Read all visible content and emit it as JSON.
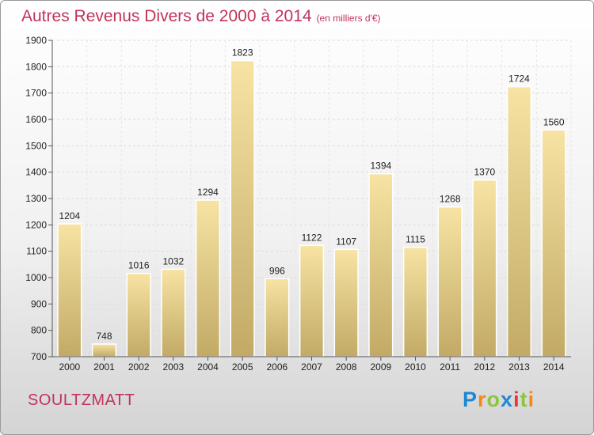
{
  "title": "Autres Revenus Divers de 2000 à 2014",
  "subtitle": "(en milliers d'€)",
  "commune": "SOULTZMATT",
  "logo": {
    "letters": [
      "P",
      "r",
      "o",
      "x",
      "i",
      "t",
      "i"
    ],
    "colors": [
      "#1e88d6",
      "#f08a1c",
      "#8cc63f",
      "#1e88d6",
      "#e53935",
      "#8cc63f",
      "#f08a1c"
    ]
  },
  "colors": {
    "title": "#c2335b",
    "bar_light": "#f7e3a3",
    "bar_dark": "#c2aa66"
  },
  "chart_data": {
    "type": "bar",
    "categories": [
      "2000",
      "2001",
      "2002",
      "2003",
      "2004",
      "2005",
      "2006",
      "2007",
      "2008",
      "2009",
      "2010",
      "2011",
      "2012",
      "2013",
      "2014"
    ],
    "values": [
      1204,
      748,
      1016,
      1032,
      1294,
      1823,
      996,
      1122,
      1107,
      1394,
      1115,
      1268,
      1370,
      1724,
      1560
    ],
    "ylim": [
      700,
      1900
    ],
    "yticks": [
      700,
      800,
      900,
      1000,
      1100,
      1200,
      1300,
      1400,
      1500,
      1600,
      1700,
      1800,
      1900
    ],
    "grid": true
  }
}
